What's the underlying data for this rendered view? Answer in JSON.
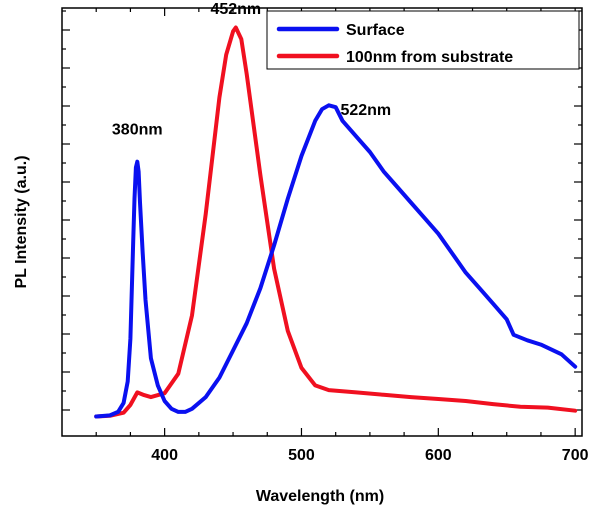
{
  "chart_data": {
    "type": "line",
    "title": "",
    "xlabel": "Wavelength (nm)",
    "ylabel": "PL Intensity (a.u.)",
    "xlim": [
      325,
      705
    ],
    "ylim": [
      -0.05,
      1.05
    ],
    "x_ticks": [
      400,
      500,
      600,
      700
    ],
    "y_tick_labels": "none",
    "grid": false,
    "legend_position": "top-right",
    "series": [
      {
        "name": "Surface",
        "color": "#0a10f0",
        "points": [
          [
            350,
            0.0
          ],
          [
            360,
            0.003
          ],
          [
            366,
            0.012
          ],
          [
            370,
            0.035
          ],
          [
            373,
            0.09
          ],
          [
            375,
            0.2
          ],
          [
            377,
            0.45
          ],
          [
            378,
            0.56
          ],
          [
            379,
            0.64
          ],
          [
            380,
            0.655
          ],
          [
            381,
            0.63
          ],
          [
            382,
            0.55
          ],
          [
            384,
            0.42
          ],
          [
            386,
            0.3
          ],
          [
            390,
            0.15
          ],
          [
            395,
            0.08
          ],
          [
            400,
            0.04
          ],
          [
            405,
            0.02
          ],
          [
            410,
            0.012
          ],
          [
            415,
            0.012
          ],
          [
            420,
            0.02
          ],
          [
            430,
            0.05
          ],
          [
            440,
            0.1
          ],
          [
            450,
            0.17
          ],
          [
            460,
            0.24
          ],
          [
            470,
            0.33
          ],
          [
            480,
            0.44
          ],
          [
            490,
            0.56
          ],
          [
            500,
            0.67
          ],
          [
            510,
            0.76
          ],
          [
            515,
            0.79
          ],
          [
            520,
            0.8
          ],
          [
            525,
            0.795
          ],
          [
            530,
            0.76
          ],
          [
            540,
            0.72
          ],
          [
            550,
            0.68
          ],
          [
            560,
            0.63
          ],
          [
            570,
            0.59
          ],
          [
            580,
            0.55
          ],
          [
            590,
            0.51
          ],
          [
            600,
            0.47
          ],
          [
            610,
            0.42
          ],
          [
            620,
            0.37
          ],
          [
            630,
            0.33
          ],
          [
            640,
            0.29
          ],
          [
            650,
            0.25
          ],
          [
            655,
            0.21
          ],
          [
            665,
            0.196
          ],
          [
            675,
            0.185
          ],
          [
            690,
            0.16
          ],
          [
            700,
            0.128
          ]
        ]
      },
      {
        "name": "100nm from substrate",
        "color": "#f01020",
        "points": [
          [
            350,
            0.0
          ],
          [
            360,
            0.002
          ],
          [
            370,
            0.01
          ],
          [
            375,
            0.03
          ],
          [
            380,
            0.062
          ],
          [
            385,
            0.055
          ],
          [
            390,
            0.05
          ],
          [
            400,
            0.06
          ],
          [
            410,
            0.11
          ],
          [
            420,
            0.26
          ],
          [
            430,
            0.52
          ],
          [
            440,
            0.82
          ],
          [
            445,
            0.93
          ],
          [
            450,
            0.99
          ],
          [
            452,
            1.0
          ],
          [
            456,
            0.97
          ],
          [
            460,
            0.88
          ],
          [
            470,
            0.62
          ],
          [
            480,
            0.38
          ],
          [
            490,
            0.22
          ],
          [
            500,
            0.125
          ],
          [
            510,
            0.08
          ],
          [
            520,
            0.068
          ],
          [
            540,
            0.062
          ],
          [
            560,
            0.056
          ],
          [
            580,
            0.05
          ],
          [
            600,
            0.045
          ],
          [
            620,
            0.04
          ],
          [
            640,
            0.032
          ],
          [
            660,
            0.025
          ],
          [
            680,
            0.023
          ],
          [
            700,
            0.015
          ]
        ]
      }
    ],
    "annotations": [
      {
        "text": "380nm",
        "x": 380,
        "y": 0.725
      },
      {
        "text": "452nm",
        "x": 452,
        "y": 1.035
      },
      {
        "text": "522nm",
        "x": 547,
        "y": 0.775
      }
    ]
  }
}
